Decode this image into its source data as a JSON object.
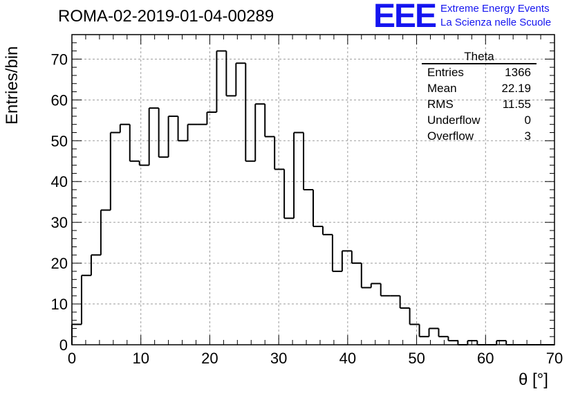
{
  "title": "ROMA-02-2019-01-04-00289",
  "logo": {
    "mark": "EEE",
    "line1": "Extreme Energy Events",
    "line2": "La Scienza nelle Scuole",
    "color": "#1515f0"
  },
  "stats_box": {
    "title": "Theta",
    "rows": [
      {
        "label": "Entries",
        "value": "1366"
      },
      {
        "label": "Mean",
        "value": "22.19"
      },
      {
        "label": "RMS",
        "value": "11.55"
      },
      {
        "label": "Underflow",
        "value": "0"
      },
      {
        "label": "Overflow",
        "value": "3"
      }
    ]
  },
  "chart_data": {
    "type": "bar",
    "histogram": true,
    "xlabel": "θ [°]",
    "ylabel": "Entries/bin",
    "xlim": [
      0,
      70
    ],
    "ylim": [
      0,
      76
    ],
    "xticks": [
      0,
      10,
      20,
      30,
      40,
      50,
      60,
      70
    ],
    "yticks": [
      0,
      10,
      20,
      30,
      40,
      50,
      60,
      70
    ],
    "grid": true,
    "bin_width": 1.4,
    "bin_start": 0,
    "values": [
      5,
      17,
      22,
      33,
      52,
      54,
      45,
      44,
      58,
      46,
      56,
      50,
      54,
      54,
      57,
      72,
      61,
      69,
      45,
      59,
      51,
      43,
      31,
      52,
      38,
      29,
      27,
      18,
      23,
      20,
      14,
      15,
      12,
      12,
      9,
      5,
      2,
      4,
      2,
      1,
      0,
      1,
      0,
      0,
      1,
      0,
      0,
      0,
      0,
      0
    ]
  }
}
